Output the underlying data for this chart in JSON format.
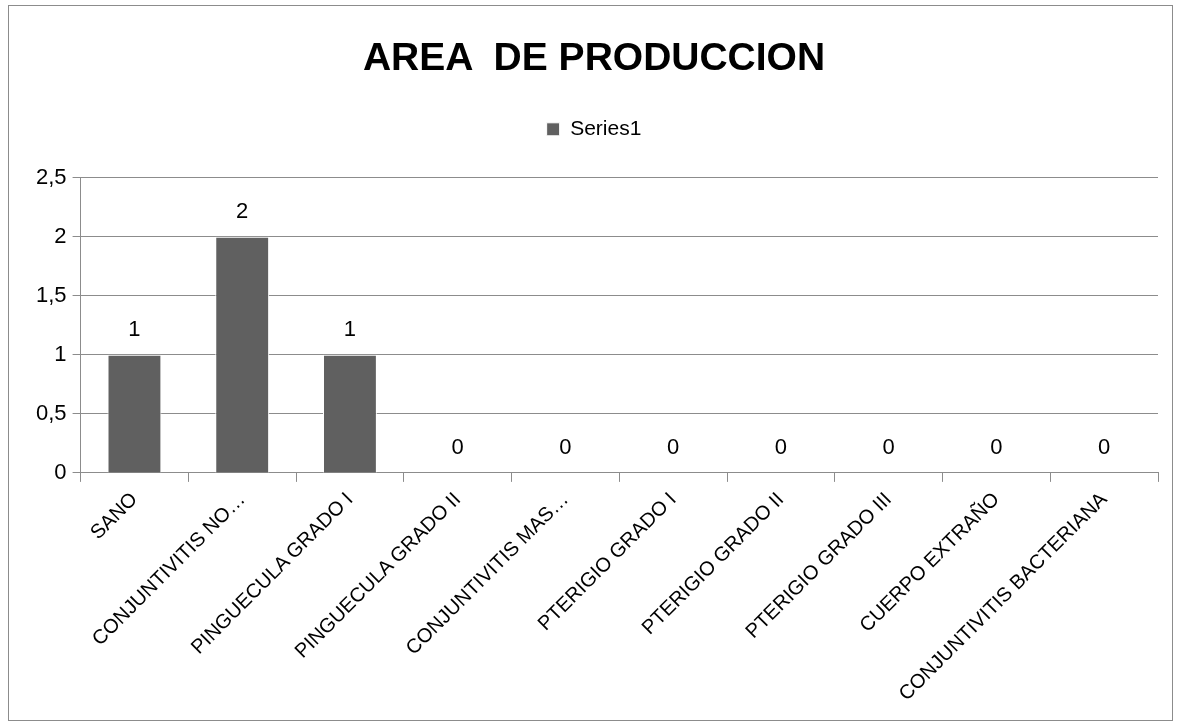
{
  "chart_data": {
    "type": "bar",
    "title": "AREA  DE PRODUCCION",
    "categories": [
      "SANO",
      "CONJUNTIVITIS NO…",
      "PINGUECULA GRADO I",
      "PINGUECULA GRADO II",
      "CONJUNTIVITIS MAS…",
      "PTERIGIO GRADO I",
      "PTERIGIO GRADO II",
      "PTERIGIO GRADO III",
      "CUERPO EXTRAÑO",
      "CONJUNTIVITIS BACTERIANA"
    ],
    "series": [
      {
        "name": "Series1",
        "color": "#606060",
        "values": [
          1,
          2,
          1,
          0,
          0,
          0,
          0,
          0,
          0,
          0
        ]
      }
    ],
    "ylim": [
      0,
      2.5
    ],
    "yticks": [
      0,
      {
        "value": 0.5,
        "label": "0,5"
      },
      1,
      {
        "value": 1.5,
        "label": "1,5"
      },
      2,
      {
        "value": 2.5,
        "label": "2,5"
      }
    ],
    "grid": "y",
    "legend": "top",
    "data_labels": true
  }
}
